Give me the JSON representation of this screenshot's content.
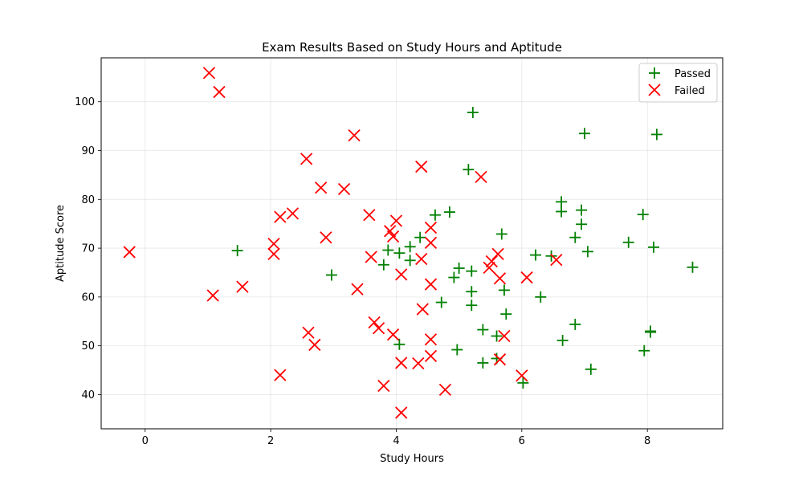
{
  "chart_data": {
    "type": "scatter",
    "title": "Exam Results Based on Study Hours and Aptitude",
    "xlabel": "Study Hours",
    "ylabel": "Aptitude Score",
    "xlim": [
      -0.7,
      9.2
    ],
    "ylim": [
      33,
      109
    ],
    "xticks": [
      0,
      2,
      4,
      6,
      8
    ],
    "yticks": [
      40,
      50,
      60,
      70,
      80,
      90,
      100
    ],
    "grid": true,
    "legend_position": "top-right",
    "series": [
      {
        "name": "Passed",
        "marker": "plus",
        "color": "#008000",
        "points": [
          [
            1.47,
            69.5
          ],
          [
            2.97,
            64.5
          ],
          [
            3.8,
            66.6
          ],
          [
            3.87,
            69.6
          ],
          [
            4.05,
            69.0
          ],
          [
            4.22,
            70.3
          ],
          [
            4.22,
            67.5
          ],
          [
            4.38,
            72.2
          ],
          [
            4.62,
            76.8
          ],
          [
            4.85,
            77.4
          ],
          [
            4.72,
            58.9
          ],
          [
            4.92,
            64.0
          ],
          [
            5.0,
            65.9
          ],
          [
            5.15,
            86.1
          ],
          [
            5.2,
            65.3
          ],
          [
            5.2,
            61.1
          ],
          [
            5.2,
            58.3
          ],
          [
            5.22,
            97.8
          ],
          [
            4.97,
            49.2
          ],
          [
            4.05,
            50.3
          ],
          [
            5.38,
            53.3
          ],
          [
            5.38,
            46.5
          ],
          [
            5.6,
            52.0
          ],
          [
            5.6,
            47.4
          ],
          [
            5.68,
            72.9
          ],
          [
            5.72,
            61.4
          ],
          [
            5.75,
            56.5
          ],
          [
            6.02,
            42.4
          ],
          [
            6.22,
            68.6
          ],
          [
            6.3,
            60.0
          ],
          [
            6.47,
            68.4
          ],
          [
            6.63,
            79.5
          ],
          [
            6.63,
            77.5
          ],
          [
            6.65,
            51.1
          ],
          [
            6.85,
            72.2
          ],
          [
            6.85,
            54.4
          ],
          [
            6.95,
            77.8
          ],
          [
            6.95,
            74.9
          ],
          [
            7.0,
            93.5
          ],
          [
            7.05,
            69.3
          ],
          [
            7.1,
            45.2
          ],
          [
            7.7,
            71.2
          ],
          [
            7.93,
            76.9
          ],
          [
            7.95,
            49.0
          ],
          [
            8.05,
            52.8
          ],
          [
            8.05,
            53.0
          ],
          [
            8.1,
            70.2
          ],
          [
            8.15,
            93.3
          ],
          [
            8.72,
            66.1
          ]
        ]
      },
      {
        "name": "Failed",
        "marker": "x",
        "color": "#ff0000",
        "points": [
          [
            -0.25,
            69.2
          ],
          [
            1.02,
            105.9
          ],
          [
            1.18,
            102.0
          ],
          [
            1.08,
            60.3
          ],
          [
            1.55,
            62.1
          ],
          [
            2.05,
            70.9
          ],
          [
            2.05,
            68.8
          ],
          [
            2.15,
            76.4
          ],
          [
            2.15,
            44.0
          ],
          [
            2.35,
            77.1
          ],
          [
            2.57,
            88.3
          ],
          [
            2.6,
            52.7
          ],
          [
            2.7,
            50.2
          ],
          [
            2.8,
            82.4
          ],
          [
            2.88,
            72.2
          ],
          [
            3.17,
            82.1
          ],
          [
            3.33,
            93.1
          ],
          [
            3.38,
            61.6
          ],
          [
            3.57,
            76.8
          ],
          [
            3.6,
            68.2
          ],
          [
            3.65,
            54.8
          ],
          [
            3.72,
            53.6
          ],
          [
            3.8,
            41.8
          ],
          [
            3.9,
            73.5
          ],
          [
            3.95,
            72.4
          ],
          [
            3.95,
            52.3
          ],
          [
            4.0,
            75.6
          ],
          [
            4.08,
            64.6
          ],
          [
            4.08,
            46.5
          ],
          [
            4.08,
            36.3
          ],
          [
            4.35,
            46.4
          ],
          [
            4.4,
            86.7
          ],
          [
            4.4,
            67.8
          ],
          [
            4.42,
            57.5
          ],
          [
            4.55,
            74.2
          ],
          [
            4.55,
            71.1
          ],
          [
            4.55,
            62.6
          ],
          [
            4.55,
            51.3
          ],
          [
            4.55,
            47.9
          ],
          [
            4.78,
            41.0
          ],
          [
            5.35,
            84.6
          ],
          [
            5.48,
            66.0
          ],
          [
            5.52,
            67.3
          ],
          [
            5.62,
            68.8
          ],
          [
            5.65,
            63.8
          ],
          [
            5.65,
            47.2
          ],
          [
            5.72,
            52.0
          ],
          [
            6.0,
            43.9
          ],
          [
            6.08,
            64.0
          ],
          [
            6.55,
            67.6
          ]
        ]
      }
    ]
  }
}
